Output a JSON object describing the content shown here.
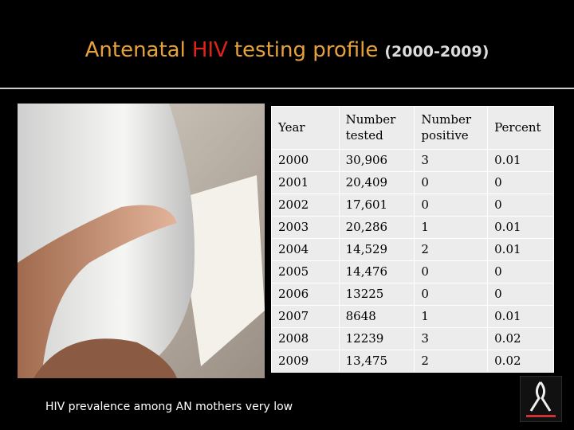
{
  "title": {
    "parts": [
      "Antenatal",
      "HIV",
      "testing profile",
      "(2000-2009)"
    ]
  },
  "table": {
    "header": [
      "Year",
      "Number tested",
      "Number positive",
      "Percent"
    ],
    "rows": [
      [
        "2000",
        "30,906",
        "3",
        "0.01"
      ],
      [
        "2001",
        "20,409",
        "0",
        "0"
      ],
      [
        "2002",
        "17,601",
        "0",
        "0"
      ],
      [
        "2003",
        "20,286",
        "1",
        "0.01"
      ],
      [
        "2004",
        "14,529",
        "2",
        "0.01"
      ],
      [
        "2005",
        "14,476",
        "0",
        "0"
      ],
      [
        "2006",
        "13225",
        "0",
        "0"
      ],
      [
        "2007",
        "8648",
        "1",
        "0.01"
      ],
      [
        "2008",
        "12239",
        "3",
        "0.02"
      ],
      [
        "2009",
        "13,475",
        "2",
        "0.02"
      ]
    ]
  },
  "caption": "HIV prevalence among AN mothers very low"
}
